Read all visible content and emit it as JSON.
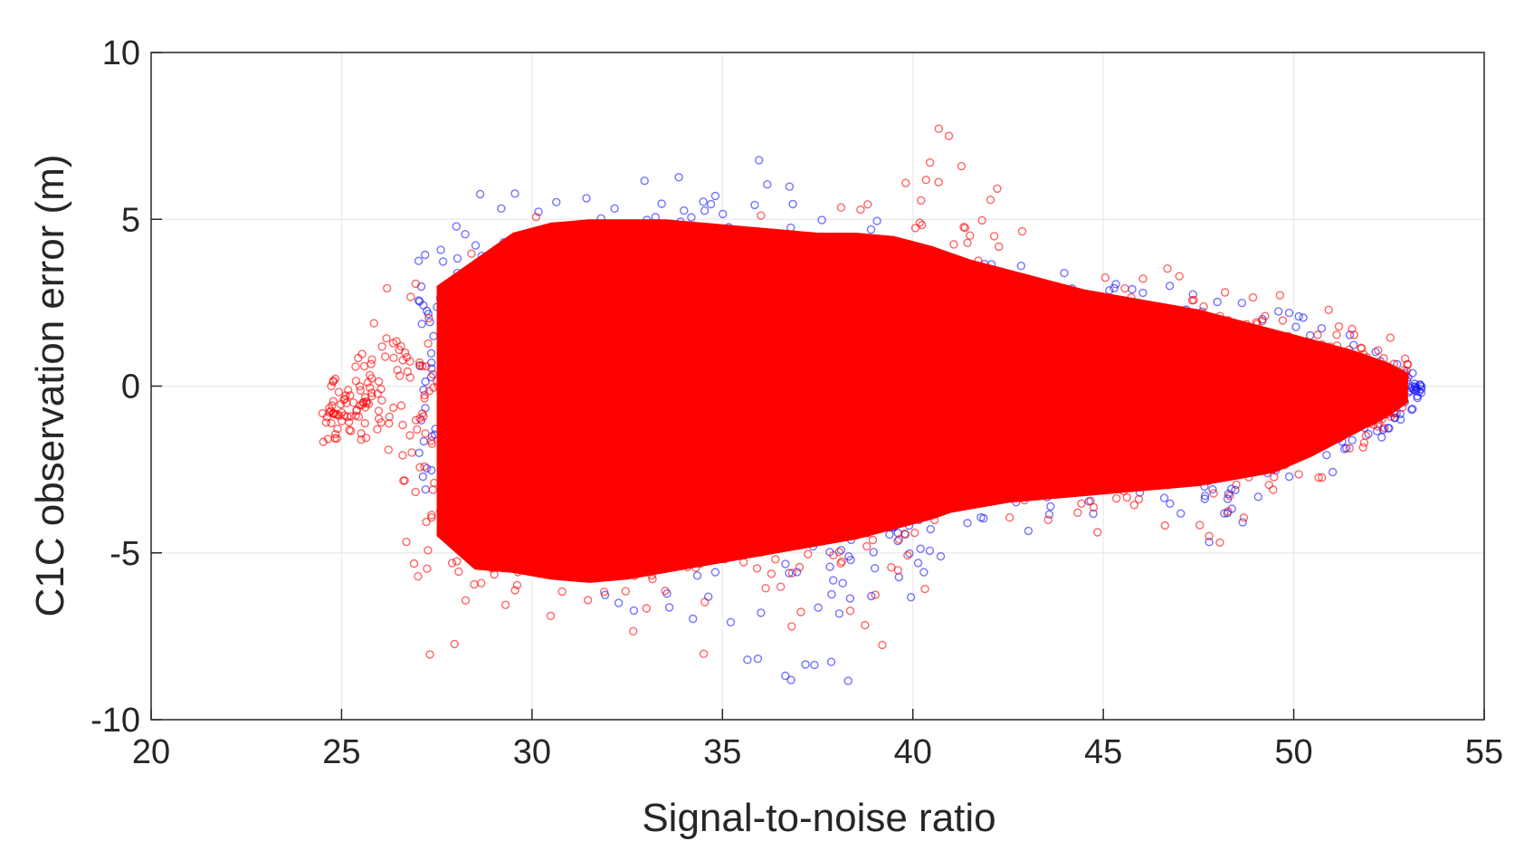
{
  "chart_data": {
    "type": "scatter",
    "title": "",
    "xlabel": "Signal-to-noise ratio",
    "ylabel": "C1C observation error (m)",
    "xlim": [
      20,
      55
    ],
    "ylim": [
      -10,
      10
    ],
    "xticks": [
      20,
      25,
      30,
      35,
      40,
      45,
      50,
      55
    ],
    "yticks": [
      -10,
      -5,
      0,
      5,
      10
    ],
    "grid": true,
    "legend": "none",
    "series": [
      {
        "color": "#0000ff",
        "marker": "circle",
        "envelope": {
          "x": [
            27.0,
            28.0,
            29.0,
            30.0,
            31.0,
            32.0,
            33.0,
            34.0,
            35.0,
            36.0,
            37.0,
            38.0,
            39.0,
            40.0,
            41.0,
            42.0,
            43.0,
            44.0,
            45.0,
            46.0,
            47.0,
            48.0,
            49.0,
            50.0,
            51.0,
            52.0,
            53.0,
            53.4
          ],
          "upper": [
            3.8,
            5.8,
            6.0,
            6.5,
            6.2,
            6.0,
            7.0,
            7.5,
            8.6,
            7.5,
            6.2,
            5.5,
            5.0,
            4.2,
            4.0,
            3.8,
            3.6,
            3.5,
            3.4,
            3.2,
            3.0,
            2.8,
            2.5,
            2.2,
            1.8,
            1.3,
            0.6,
            0.0
          ],
          "lower": [
            -3.0,
            -4.5,
            -5.5,
            -6.0,
            -6.2,
            -6.5,
            -7.0,
            -7.5,
            -7.8,
            -8.5,
            -9.0,
            -9.2,
            -8.0,
            -6.5,
            -5.5,
            -5.0,
            -4.5,
            -4.2,
            -4.5,
            -4.2,
            -4.5,
            -5.0,
            -4.2,
            -3.5,
            -2.8,
            -2.0,
            -1.0,
            -0.2
          ]
        }
      },
      {
        "color": "#ff0000",
        "marker": "circle",
        "envelope": {
          "x": [
            24.5,
            25.5,
            26.5,
            27.5,
            28.5,
            29.5,
            30.5,
            31.5,
            32.5,
            33.5,
            34.5,
            35.5,
            36.5,
            37.5,
            38.5,
            39.5,
            40.5,
            41.0,
            41.5,
            42.5,
            43.5,
            44.5,
            45.5,
            46.5,
            47.5,
            48.5,
            49.5,
            50.5,
            51.5,
            52.5,
            53.0
          ],
          "upper": [
            -0.1,
            1.0,
            3.8,
            4.5,
            4.8,
            5.2,
            5.3,
            5.3,
            5.4,
            5.3,
            5.3,
            5.2,
            5.2,
            5.3,
            5.5,
            5.8,
            7.5,
            8.6,
            7.0,
            5.5,
            4.0,
            3.6,
            3.5,
            4.5,
            3.5,
            3.0,
            2.8,
            2.5,
            2.0,
            1.5,
            0.9
          ],
          "lower": [
            -2.0,
            -1.8,
            -3.8,
            -9.0,
            -6.8,
            -7.5,
            -7.8,
            -8.2,
            -8.5,
            -8.8,
            -9.0,
            -8.0,
            -7.5,
            -8.5,
            -8.0,
            -7.8,
            -5.8,
            -5.0,
            -4.5,
            -4.0,
            -4.0,
            -4.5,
            -4.5,
            -4.8,
            -5.2,
            -4.5,
            -3.5,
            -3.0,
            -2.2,
            -1.5,
            -0.6
          ],
          "core_upper": [
            0.0,
            0.0,
            0.0,
            3.0,
            3.8,
            4.6,
            4.9,
            5.0,
            5.0,
            5.0,
            4.9,
            4.8,
            4.7,
            4.6,
            4.6,
            4.5,
            4.2,
            4.0,
            3.8,
            3.5,
            3.2,
            2.9,
            2.7,
            2.5,
            2.3,
            2.0,
            1.7,
            1.4,
            1.1,
            0.7,
            0.4
          ],
          "core_lower": [
            0.0,
            0.0,
            0.0,
            -4.5,
            -5.5,
            -5.6,
            -5.8,
            -5.9,
            -5.8,
            -5.6,
            -5.4,
            -5.2,
            -5.0,
            -4.8,
            -4.6,
            -4.3,
            -4.0,
            -3.8,
            -3.7,
            -3.5,
            -3.4,
            -3.3,
            -3.2,
            -3.1,
            -3.0,
            -2.8,
            -2.6,
            -2.1,
            -1.5,
            -0.9,
            -0.5
          ]
        }
      }
    ]
  }
}
